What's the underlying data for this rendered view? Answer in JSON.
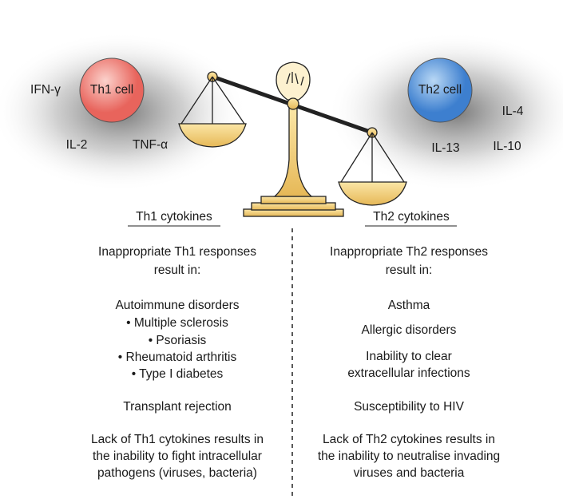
{
  "th1": {
    "cell": "Th1 cell",
    "cytokines": [
      "IFN-γ",
      "IL-2",
      "TNF-α"
    ],
    "heading": "Th1 cytokines",
    "lines": [
      "Inappropriate Th1 responses",
      "result in:",
      "Autoimmune disorders",
      "• Multiple sclerosis",
      "• Psoriasis",
      "• Rheumatoid arthritis",
      "• Type I diabetes",
      "Transplant rejection",
      "Lack of Th1 cytokines results in",
      "the inability to fight intracellular",
      "pathogens (viruses, bacteria)"
    ]
  },
  "th2": {
    "cell": "Th2 cell",
    "cytokines": [
      "IL-4",
      "IL-13",
      "IL-10"
    ],
    "heading": "Th2 cytokines",
    "lines": [
      "Inappropriate Th2 responses",
      "result in:",
      "Asthma",
      "Allergic disorders",
      "Inability to clear",
      "extracellular infections",
      "Susceptibility to HIV",
      "Lack of Th2 cytokines results in",
      "the inability to neutralise invading",
      "viruses and bacteria"
    ]
  }
}
